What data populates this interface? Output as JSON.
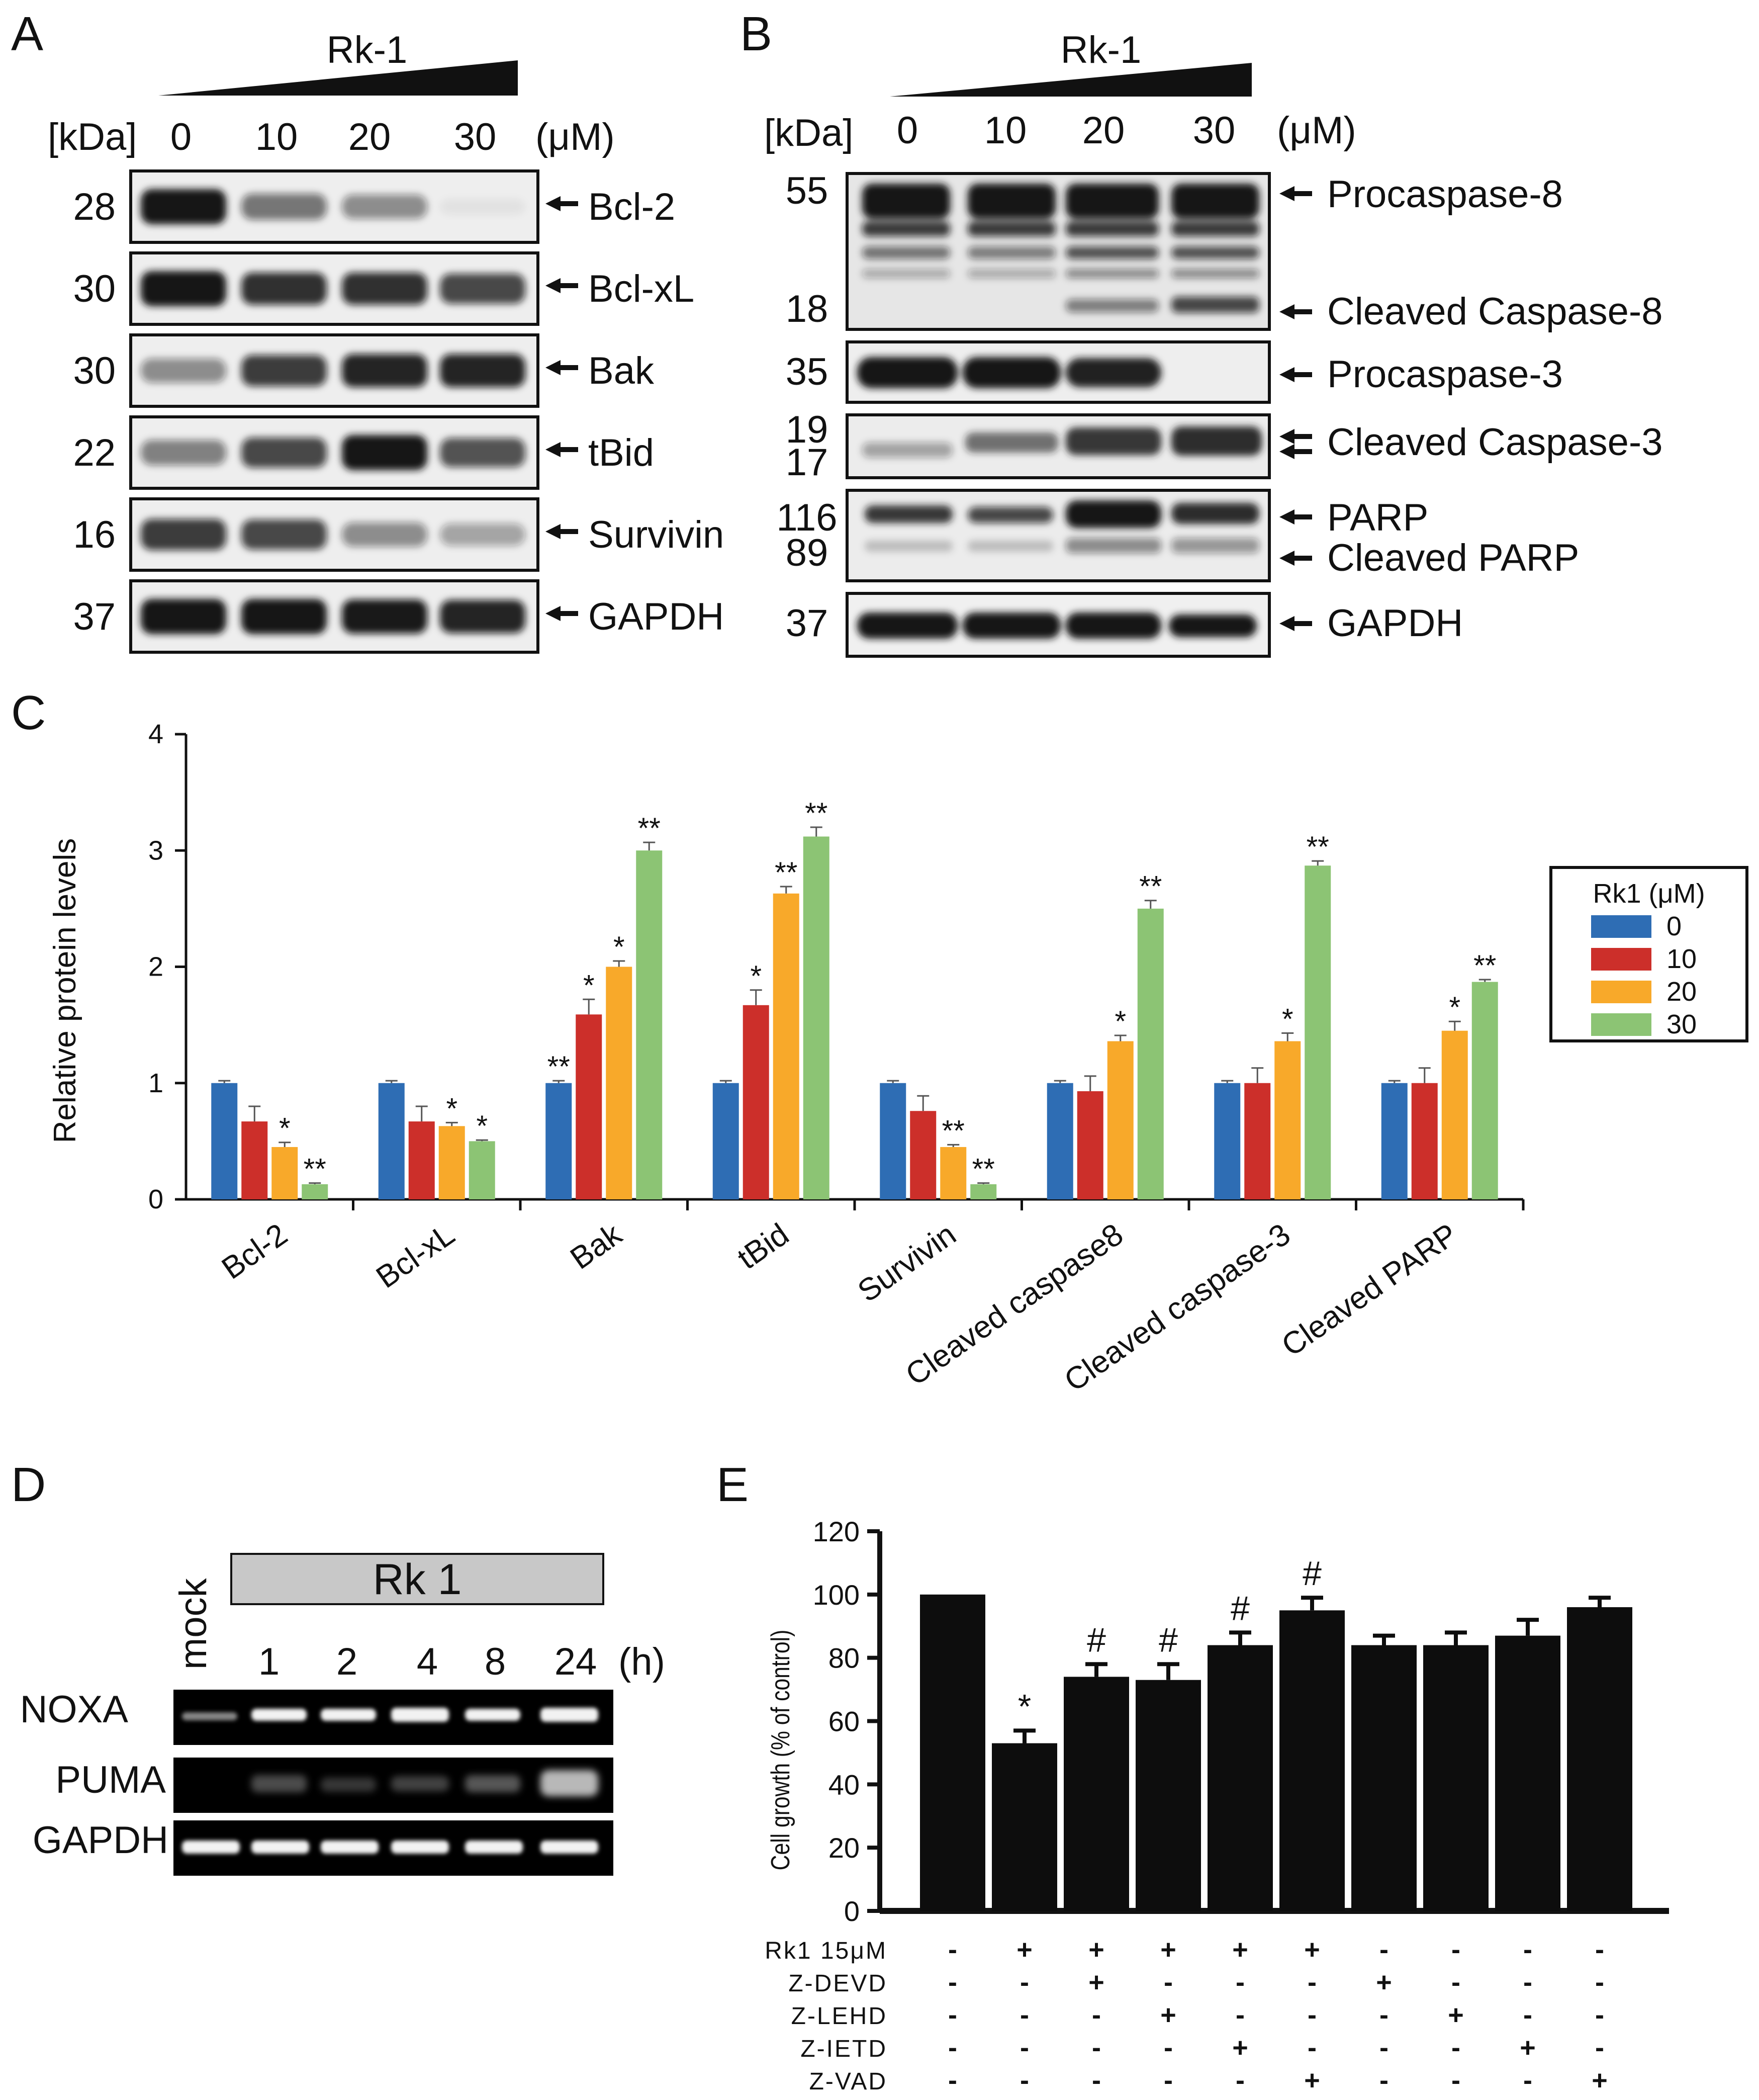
{
  "panel_a": {
    "letter": "A",
    "treatment": "Rk-1",
    "kda_label": "[kDa]",
    "unit": "(μM)",
    "doses": [
      "0",
      "10",
      "20",
      "30"
    ],
    "bands": [
      {
        "kda": "28",
        "name": "Bcl-2",
        "intensity": [
          1.0,
          0.55,
          0.45,
          0.05
        ]
      },
      {
        "kda": "30",
        "name": "Bcl-xL",
        "intensity": [
          1.0,
          0.85,
          0.85,
          0.75
        ]
      },
      {
        "kda": "30",
        "name": "Bak",
        "intensity": [
          0.45,
          0.8,
          0.9,
          0.9
        ]
      },
      {
        "kda": "22",
        "name": "tBid",
        "intensity": [
          0.5,
          0.75,
          1.0,
          0.7
        ]
      },
      {
        "kda": "16",
        "name": "Survivin",
        "intensity": [
          0.8,
          0.75,
          0.45,
          0.35
        ]
      },
      {
        "kda": "37",
        "name": "GAPDH",
        "intensity": [
          1.0,
          1.0,
          0.95,
          0.9
        ]
      }
    ]
  },
  "panel_b": {
    "letter": "B",
    "treatment": "Rk-1",
    "kda_label": "[kDa]",
    "unit": "(μM)",
    "doses": [
      "0",
      "10",
      "20",
      "30"
    ],
    "blots": [
      {
        "kdas": [
          "55",
          "18"
        ],
        "names": [
          "Procaspase-8",
          "Cleaved Caspase-8"
        ]
      },
      {
        "kdas": [
          "35"
        ],
        "names": [
          "Procaspase-3"
        ]
      },
      {
        "kdas": [
          "19",
          "17"
        ],
        "names": [
          "Cleaved Caspase-3"
        ]
      },
      {
        "kdas": [
          "116",
          "89"
        ],
        "names": [
          "PARP",
          "Cleaved PARP"
        ]
      },
      {
        "kdas": [
          "37"
        ],
        "names": [
          "GAPDH"
        ]
      }
    ]
  },
  "panel_c": {
    "letter": "C",
    "chart_data": {
      "type": "bar",
      "ylabel": "Relative protein levels",
      "ylim": [
        0,
        4
      ],
      "yticks": [
        "0",
        "1",
        "2",
        "3",
        "4"
      ],
      "categories": [
        "Bcl-2",
        "Bcl-xL",
        "Bak",
        "tBid",
        "Survivin",
        "Cleaved caspase8",
        "Cleaved caspase-3",
        "Cleaved PARP"
      ],
      "legend_title": "Rk1 (μM)",
      "legend_position": "right",
      "series": [
        {
          "name": "0",
          "color": "#2e6db4",
          "values": [
            1.0,
            1.0,
            1.0,
            1.0,
            1.0,
            1.0,
            1.0,
            1.0
          ],
          "errors": [
            0.02,
            0.02,
            0.02,
            0.02,
            0.02,
            0.02,
            0.02,
            0.02
          ],
          "stars": [
            "",
            "",
            "**",
            "",
            "",
            "",
            "",
            ""
          ]
        },
        {
          "name": "10",
          "color": "#cc2f2a",
          "values": [
            0.67,
            0.67,
            1.59,
            1.67,
            0.76,
            0.93,
            1.0,
            1.0
          ],
          "errors": [
            0.13,
            0.13,
            0.13,
            0.13,
            0.13,
            0.13,
            0.13,
            0.13
          ],
          "stars": [
            "",
            "",
            "*",
            "*",
            "",
            "",
            "",
            ""
          ]
        },
        {
          "name": "20",
          "color": "#f8a92a",
          "values": [
            0.45,
            0.63,
            2.0,
            2.63,
            0.45,
            1.36,
            1.36,
            1.45
          ],
          "errors": [
            0.04,
            0.03,
            0.05,
            0.06,
            0.02,
            0.05,
            0.07,
            0.08
          ],
          "stars": [
            "*",
            "*",
            "*",
            "**",
            "**",
            "*",
            "*",
            "*"
          ]
        },
        {
          "name": "30",
          "color": "#8cc474",
          "values": [
            0.13,
            0.5,
            3.0,
            3.12,
            0.13,
            2.5,
            2.87,
            1.87
          ],
          "errors": [
            0.01,
            0.01,
            0.07,
            0.08,
            0.01,
            0.07,
            0.04,
            0.02
          ],
          "stars": [
            "**",
            "*",
            "**",
            "**",
            "**",
            "**",
            "**",
            "**"
          ]
        }
      ]
    }
  },
  "panel_d": {
    "letter": "D",
    "mock": "mock",
    "treatment": "Rk 1",
    "times": [
      "1",
      "2",
      "4",
      "8",
      "24"
    ],
    "unit": "(h)",
    "genes": [
      "NOXA",
      "PUMA",
      "GAPDH"
    ]
  },
  "panel_e": {
    "letter": "E",
    "chart_data": {
      "type": "bar",
      "ylabel": "Cell growth  (% of control)",
      "ylim": [
        0,
        120
      ],
      "yticks": [
        "0",
        "20",
        "40",
        "60",
        "80",
        "100",
        "120"
      ],
      "values": [
        100,
        53,
        74,
        73,
        84,
        95,
        84,
        84,
        87,
        96
      ],
      "errors": [
        0,
        4,
        4,
        5,
        4,
        4,
        3,
        4,
        5,
        3
      ],
      "marks": [
        "",
        "*",
        "#",
        "#",
        "#",
        "#",
        "",
        "",
        "",
        ""
      ],
      "conditions": [
        {
          "name": "Rk1 15μM",
          "signs": [
            "-",
            "+",
            "+",
            "+",
            "+",
            "+",
            "-",
            "-",
            "-",
            "-"
          ]
        },
        {
          "name": "Z-DEVD",
          "signs": [
            "-",
            "-",
            "+",
            "-",
            "-",
            "-",
            "+",
            "-",
            "-",
            "-"
          ]
        },
        {
          "name": "Z-LEHD",
          "signs": [
            "-",
            "-",
            "-",
            "+",
            "-",
            "-",
            "-",
            "+",
            "-",
            "-"
          ]
        },
        {
          "name": "Z-IETD",
          "signs": [
            "-",
            "-",
            "-",
            "-",
            "+",
            "-",
            "-",
            "-",
            "+",
            "-"
          ]
        },
        {
          "name": "Z-VAD",
          "signs": [
            "-",
            "-",
            "-",
            "-",
            "-",
            "+",
            "-",
            "-",
            "-",
            "+"
          ]
        }
      ]
    }
  }
}
